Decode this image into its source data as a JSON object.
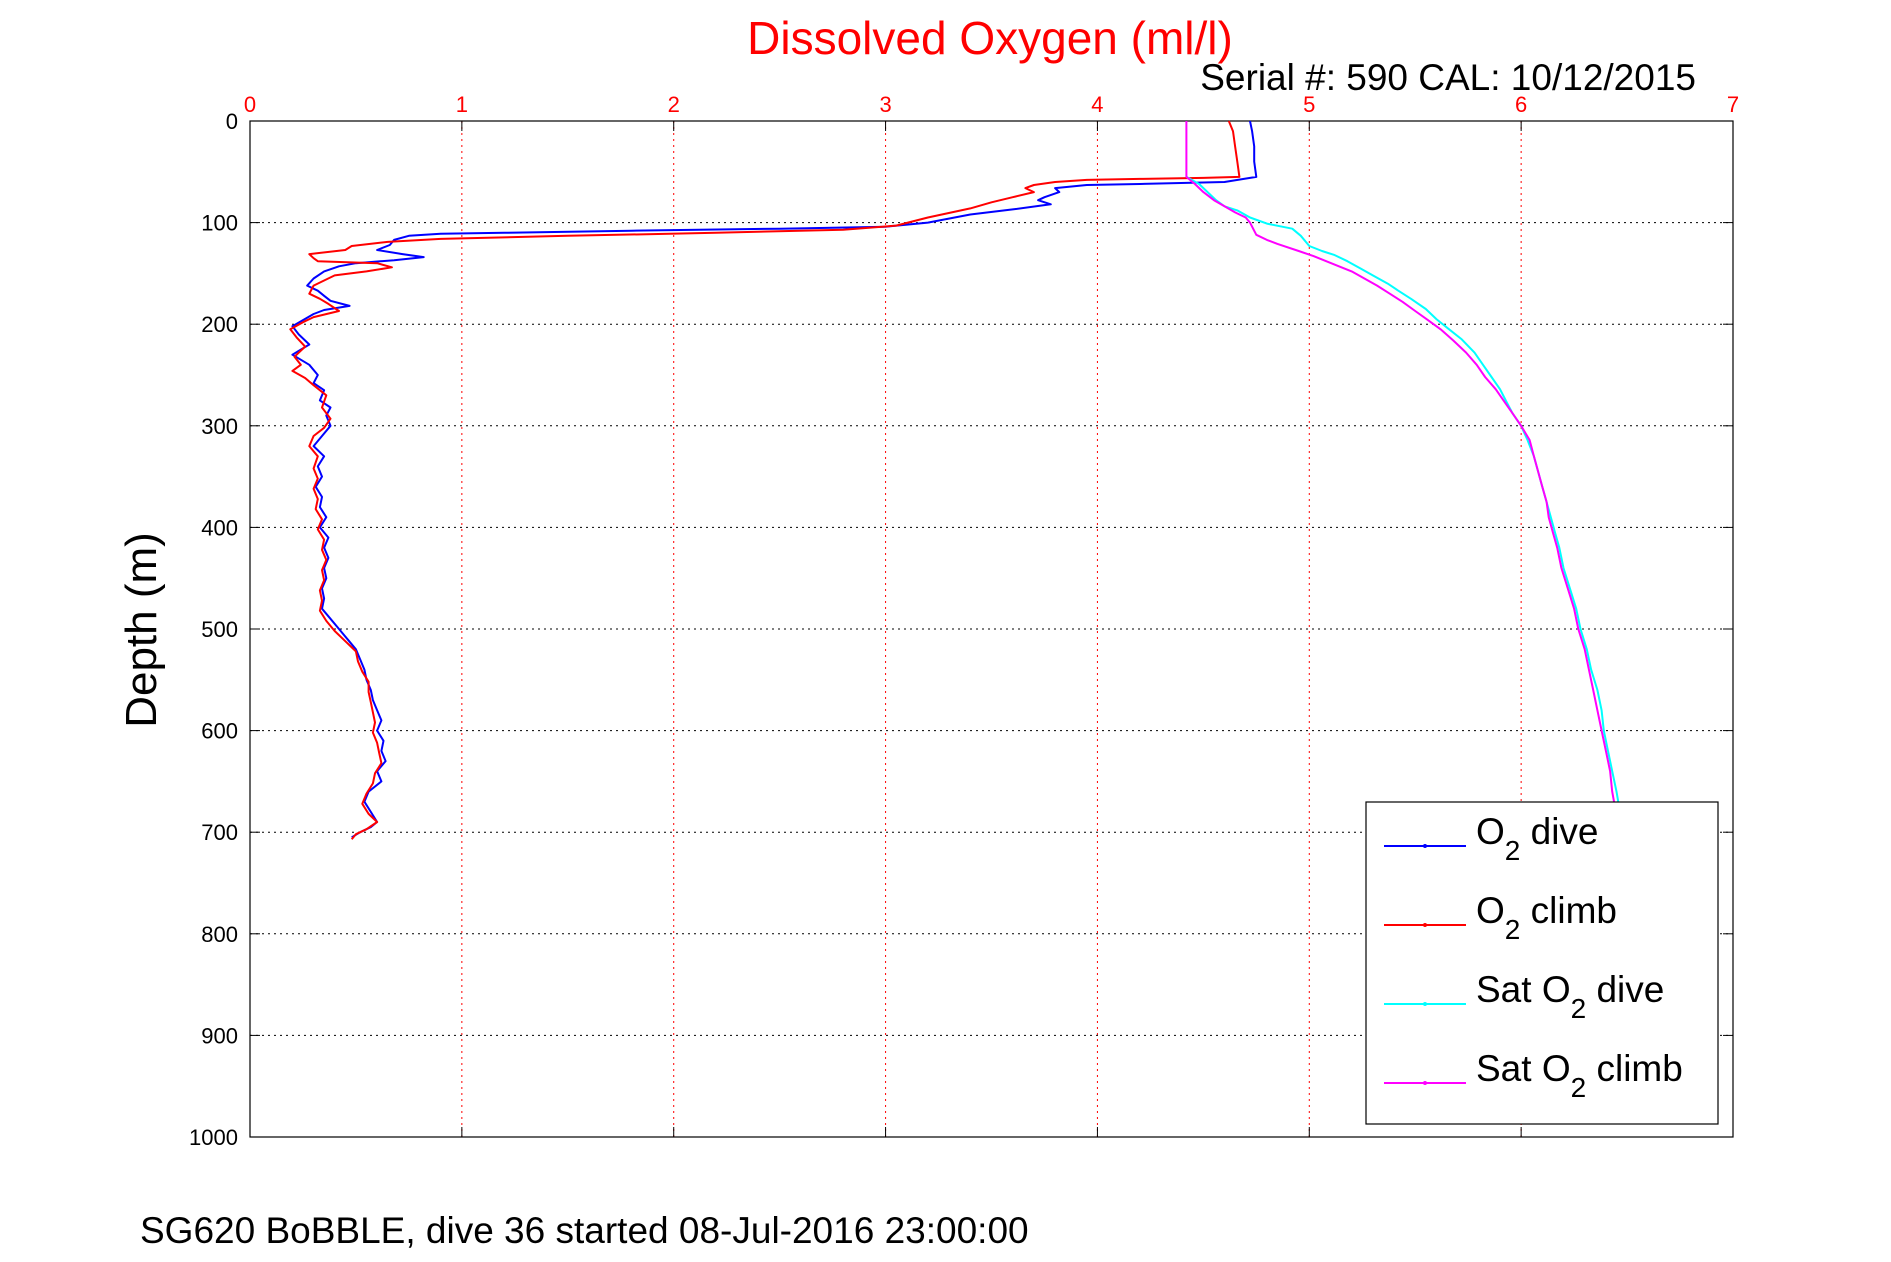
{
  "chart_data": {
    "type": "line",
    "title": "Dissolved Oxygen (ml/l)",
    "subtitle": "Serial #: 590  CAL: 10/12/2015",
    "ylabel": "Depth (m)",
    "footer": "SG620 BoBBLE, dive 36 started 08-Jul-2016 23:00:00",
    "xlim": [
      0,
      7
    ],
    "ylim": [
      0,
      1000
    ],
    "y_reversed": true,
    "x_axis_position": "top",
    "x_ticks": [
      "0",
      "1",
      "2",
      "3",
      "4",
      "5",
      "6",
      "7"
    ],
    "y_ticks": [
      "0",
      "100",
      "200",
      "300",
      "400",
      "500",
      "600",
      "700",
      "800",
      "900",
      "1000"
    ],
    "grid": true,
    "legend_position": "bottom-right",
    "colors": {
      "title": "#ff0000",
      "x_ticks": "#ff0000",
      "grid_x": "#ff0000",
      "grid_y": "#000000"
    },
    "series": [
      {
        "name": "O2 dive",
        "label": {
          "main": "O",
          "sub": "2",
          "rest": " dive",
          "prefix": ""
        },
        "color": "#0000ff",
        "points": [
          [
            4.72,
            0
          ],
          [
            4.73,
            10
          ],
          [
            4.74,
            25
          ],
          [
            4.74,
            40
          ],
          [
            4.75,
            55
          ],
          [
            4.6,
            60
          ],
          [
            4.2,
            62
          ],
          [
            3.95,
            63
          ],
          [
            3.8,
            66
          ],
          [
            3.82,
            70
          ],
          [
            3.75,
            75
          ],
          [
            3.72,
            78
          ],
          [
            3.78,
            82
          ],
          [
            3.6,
            87
          ],
          [
            3.4,
            92
          ],
          [
            3.2,
            100
          ],
          [
            3.0,
            104
          ],
          [
            2.5,
            106
          ],
          [
            1.8,
            108
          ],
          [
            1.2,
            110
          ],
          [
            0.9,
            111
          ],
          [
            0.75,
            113
          ],
          [
            0.68,
            117
          ],
          [
            0.66,
            122
          ],
          [
            0.6,
            127
          ],
          [
            0.72,
            131
          ],
          [
            0.82,
            134
          ],
          [
            0.68,
            137
          ],
          [
            0.5,
            140
          ],
          [
            0.42,
            143
          ],
          [
            0.35,
            148
          ],
          [
            0.3,
            155
          ],
          [
            0.27,
            162
          ],
          [
            0.32,
            167
          ],
          [
            0.35,
            172
          ],
          [
            0.38,
            177
          ],
          [
            0.47,
            182
          ],
          [
            0.35,
            186
          ],
          [
            0.3,
            190
          ],
          [
            0.25,
            196
          ],
          [
            0.2,
            202
          ],
          [
            0.23,
            210
          ],
          [
            0.28,
            220
          ],
          [
            0.2,
            230
          ],
          [
            0.28,
            240
          ],
          [
            0.32,
            250
          ],
          [
            0.3,
            258
          ],
          [
            0.35,
            265
          ],
          [
            0.33,
            275
          ],
          [
            0.38,
            282
          ],
          [
            0.36,
            290
          ],
          [
            0.38,
            300
          ],
          [
            0.34,
            310
          ],
          [
            0.3,
            320
          ],
          [
            0.35,
            330
          ],
          [
            0.32,
            340
          ],
          [
            0.34,
            350
          ],
          [
            0.31,
            360
          ],
          [
            0.34,
            370
          ],
          [
            0.33,
            380
          ],
          [
            0.36,
            390
          ],
          [
            0.33,
            400
          ],
          [
            0.37,
            410
          ],
          [
            0.35,
            420
          ],
          [
            0.37,
            430
          ],
          [
            0.35,
            440
          ],
          [
            0.36,
            450
          ],
          [
            0.34,
            460
          ],
          [
            0.35,
            470
          ],
          [
            0.34,
            480
          ],
          [
            0.38,
            490
          ],
          [
            0.42,
            500
          ],
          [
            0.46,
            510
          ],
          [
            0.5,
            520
          ],
          [
            0.52,
            530
          ],
          [
            0.54,
            540
          ],
          [
            0.55,
            550
          ],
          [
            0.57,
            560
          ],
          [
            0.58,
            570
          ],
          [
            0.6,
            580
          ],
          [
            0.62,
            590
          ],
          [
            0.6,
            600
          ],
          [
            0.63,
            610
          ],
          [
            0.62,
            620
          ],
          [
            0.64,
            630
          ],
          [
            0.6,
            640
          ],
          [
            0.62,
            650
          ],
          [
            0.56,
            660
          ],
          [
            0.54,
            670
          ],
          [
            0.57,
            680
          ],
          [
            0.6,
            690
          ],
          [
            0.57,
            695
          ],
          [
            0.52,
            700
          ],
          [
            0.48,
            705
          ]
        ]
      },
      {
        "name": "O2 climb",
        "label": {
          "main": "O",
          "sub": "2",
          "rest": " climb",
          "prefix": ""
        },
        "color": "#ff0000",
        "points": [
          [
            4.62,
            0
          ],
          [
            4.64,
            10
          ],
          [
            4.65,
            25
          ],
          [
            4.66,
            40
          ],
          [
            4.67,
            55
          ],
          [
            4.5,
            56
          ],
          [
            4.2,
            57
          ],
          [
            3.95,
            58
          ],
          [
            3.8,
            60
          ],
          [
            3.7,
            63
          ],
          [
            3.66,
            66
          ],
          [
            3.7,
            70
          ],
          [
            3.6,
            75
          ],
          [
            3.5,
            80
          ],
          [
            3.4,
            86
          ],
          [
            3.2,
            95
          ],
          [
            3.05,
            103
          ],
          [
            2.8,
            107
          ],
          [
            2.2,
            110
          ],
          [
            1.5,
            113
          ],
          [
            0.9,
            116
          ],
          [
            0.65,
            119
          ],
          [
            0.48,
            123
          ],
          [
            0.45,
            127
          ],
          [
            0.28,
            131
          ],
          [
            0.3,
            135
          ],
          [
            0.32,
            138
          ],
          [
            0.6,
            140
          ],
          [
            0.67,
            144
          ],
          [
            0.55,
            148
          ],
          [
            0.4,
            152
          ],
          [
            0.35,
            157
          ],
          [
            0.3,
            162
          ],
          [
            0.28,
            170
          ],
          [
            0.33,
            175
          ],
          [
            0.37,
            180
          ],
          [
            0.42,
            187
          ],
          [
            0.3,
            193
          ],
          [
            0.25,
            198
          ],
          [
            0.19,
            205
          ],
          [
            0.22,
            213
          ],
          [
            0.26,
            222
          ],
          [
            0.21,
            232
          ],
          [
            0.24,
            240
          ],
          [
            0.2,
            246
          ],
          [
            0.26,
            253
          ],
          [
            0.3,
            260
          ],
          [
            0.36,
            270
          ],
          [
            0.34,
            282
          ],
          [
            0.38,
            293
          ],
          [
            0.35,
            302
          ],
          [
            0.3,
            310
          ],
          [
            0.28,
            320
          ],
          [
            0.32,
            330
          ],
          [
            0.3,
            342
          ],
          [
            0.32,
            352
          ],
          [
            0.3,
            362
          ],
          [
            0.32,
            372
          ],
          [
            0.31,
            382
          ],
          [
            0.34,
            392
          ],
          [
            0.32,
            402
          ],
          [
            0.35,
            412
          ],
          [
            0.34,
            422
          ],
          [
            0.36,
            432
          ],
          [
            0.34,
            442
          ],
          [
            0.35,
            452
          ],
          [
            0.33,
            462
          ],
          [
            0.34,
            472
          ],
          [
            0.33,
            482
          ],
          [
            0.36,
            492
          ],
          [
            0.4,
            502
          ],
          [
            0.45,
            512
          ],
          [
            0.5,
            522
          ],
          [
            0.51,
            532
          ],
          [
            0.53,
            542
          ],
          [
            0.56,
            552
          ],
          [
            0.56,
            562
          ],
          [
            0.57,
            572
          ],
          [
            0.58,
            582
          ],
          [
            0.59,
            592
          ],
          [
            0.58,
            602
          ],
          [
            0.6,
            612
          ],
          [
            0.61,
            622
          ],
          [
            0.62,
            632
          ],
          [
            0.59,
            642
          ],
          [
            0.58,
            652
          ],
          [
            0.55,
            662
          ],
          [
            0.53,
            672
          ],
          [
            0.56,
            682
          ],
          [
            0.6,
            690
          ],
          [
            0.55,
            697
          ],
          [
            0.5,
            702
          ],
          [
            0.48,
            707
          ]
        ]
      },
      {
        "name": "Sat O2 dive",
        "label": {
          "main": "O",
          "sub": "2",
          "rest": " dive",
          "prefix": "Sat "
        },
        "color": "#00ffff",
        "points": [
          [
            4.42,
            55
          ],
          [
            4.48,
            62
          ],
          [
            4.52,
            70
          ],
          [
            4.56,
            78
          ],
          [
            4.6,
            84
          ],
          [
            4.66,
            88
          ],
          [
            4.72,
            95
          ],
          [
            4.8,
            101
          ],
          [
            4.92,
            106
          ],
          [
            4.96,
            113
          ],
          [
            5.0,
            123
          ],
          [
            5.06,
            128
          ],
          [
            5.12,
            132
          ],
          [
            5.18,
            138
          ],
          [
            5.24,
            145
          ],
          [
            5.3,
            152
          ],
          [
            5.37,
            160
          ],
          [
            5.42,
            167
          ],
          [
            5.48,
            175
          ],
          [
            5.55,
            185
          ],
          [
            5.6,
            195
          ],
          [
            5.66,
            205
          ],
          [
            5.72,
            215
          ],
          [
            5.78,
            228
          ],
          [
            5.82,
            240
          ],
          [
            5.86,
            252
          ],
          [
            5.9,
            264
          ],
          [
            5.93,
            276
          ],
          [
            5.96,
            288
          ],
          [
            6.0,
            300
          ],
          [
            6.03,
            314
          ],
          [
            6.06,
            330
          ],
          [
            6.08,
            345
          ],
          [
            6.1,
            360
          ],
          [
            6.12,
            375
          ],
          [
            6.14,
            390
          ],
          [
            6.16,
            405
          ],
          [
            6.18,
            420
          ],
          [
            6.2,
            440
          ],
          [
            6.23,
            460
          ],
          [
            6.26,
            480
          ],
          [
            6.28,
            500
          ],
          [
            6.31,
            520
          ],
          [
            6.33,
            540
          ],
          [
            6.36,
            560
          ],
          [
            6.38,
            580
          ],
          [
            6.39,
            600
          ],
          [
            6.41,
            620
          ],
          [
            6.43,
            640
          ],
          [
            6.45,
            660
          ],
          [
            6.46,
            672
          ]
        ]
      },
      {
        "name": "Sat O2 climb",
        "label": {
          "main": "O",
          "sub": "2",
          "rest": " climb",
          "prefix": "Sat "
        },
        "color": "#ff00ff",
        "points": [
          [
            4.42,
            0
          ],
          [
            4.42,
            55
          ],
          [
            4.46,
            62
          ],
          [
            4.5,
            70
          ],
          [
            4.55,
            78
          ],
          [
            4.6,
            84
          ],
          [
            4.65,
            90
          ],
          [
            4.7,
            95
          ],
          [
            4.72,
            100
          ],
          [
            4.75,
            112
          ],
          [
            4.8,
            117
          ],
          [
            4.85,
            121
          ],
          [
            4.95,
            128
          ],
          [
            5.02,
            133
          ],
          [
            5.08,
            138
          ],
          [
            5.14,
            143
          ],
          [
            5.2,
            148
          ],
          [
            5.26,
            155
          ],
          [
            5.32,
            162
          ],
          [
            5.38,
            170
          ],
          [
            5.44,
            178
          ],
          [
            5.5,
            187
          ],
          [
            5.56,
            196
          ],
          [
            5.62,
            205
          ],
          [
            5.68,
            216
          ],
          [
            5.74,
            228
          ],
          [
            5.79,
            240
          ],
          [
            5.83,
            252
          ],
          [
            5.88,
            264
          ],
          [
            5.92,
            276
          ],
          [
            5.96,
            288
          ],
          [
            6.0,
            300
          ],
          [
            6.04,
            314
          ],
          [
            6.06,
            330
          ],
          [
            6.08,
            345
          ],
          [
            6.1,
            360
          ],
          [
            6.12,
            375
          ],
          [
            6.13,
            390
          ],
          [
            6.15,
            405
          ],
          [
            6.17,
            420
          ],
          [
            6.19,
            440
          ],
          [
            6.22,
            460
          ],
          [
            6.25,
            480
          ],
          [
            6.27,
            500
          ],
          [
            6.3,
            520
          ],
          [
            6.32,
            540
          ],
          [
            6.34,
            560
          ],
          [
            6.36,
            580
          ],
          [
            6.38,
            600
          ],
          [
            6.4,
            620
          ],
          [
            6.42,
            640
          ],
          [
            6.43,
            660
          ],
          [
            6.44,
            672
          ]
        ]
      }
    ]
  }
}
